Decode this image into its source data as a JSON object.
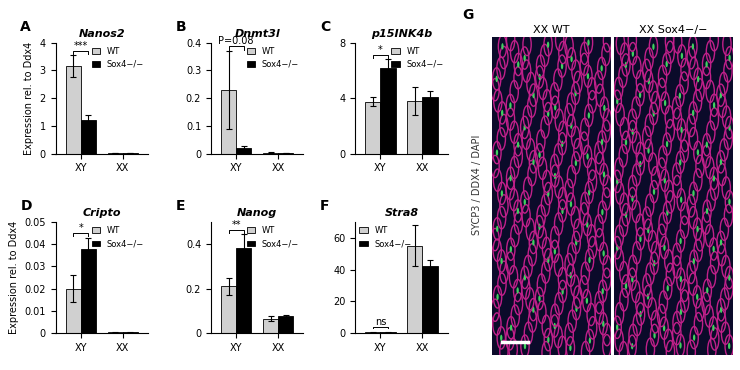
{
  "chart_data": [
    {
      "type": "bar",
      "panel": "A",
      "title": "Nanos2",
      "y_label": "Expression rel. to Ddx4",
      "categories": [
        "XY",
        "XX"
      ],
      "series": [
        {
          "name": "WT",
          "color": "#d0d0d0",
          "values": [
            3.15,
            0.02
          ],
          "errors": [
            0.4,
            0.01
          ]
        },
        {
          "name": "Sox4−/−",
          "color": "#000000",
          "values": [
            1.2,
            0.02
          ],
          "errors": [
            0.2,
            0.01
          ]
        }
      ],
      "ylim": [
        0,
        4
      ],
      "yticks": [
        0,
        1,
        2,
        3,
        4
      ],
      "legend": "upper right",
      "annotation": "***"
    },
    {
      "type": "bar",
      "panel": "B",
      "title": "Dnmt3l",
      "categories": [
        "XY",
        "XX"
      ],
      "series": [
        {
          "name": "WT",
          "color": "#d0d0d0",
          "values": [
            0.23,
            0.003
          ],
          "errors": [
            0.14,
            0.001
          ]
        },
        {
          "name": "Sox4−/−",
          "color": "#000000",
          "values": [
            0.02,
            0.002
          ],
          "errors": [
            0.008,
            0.001
          ]
        }
      ],
      "ylim": [
        0,
        0.4
      ],
      "yticks": [
        0,
        0.1,
        0.2,
        0.3,
        0.4
      ],
      "legend": "upper right",
      "annotation": "P=0.08"
    },
    {
      "type": "bar",
      "panel": "C",
      "title": "p15INK4b",
      "categories": [
        "XY",
        "XX"
      ],
      "series": [
        {
          "name": "WT",
          "color": "#d0d0d0",
          "values": [
            3.75,
            3.8
          ],
          "errors": [
            0.3,
            1.0
          ]
        },
        {
          "name": "Sox4−/−",
          "color": "#000000",
          "values": [
            6.2,
            4.1
          ],
          "errors": [
            0.6,
            0.4
          ]
        }
      ],
      "ylim": [
        0,
        8
      ],
      "yticks": [
        0,
        4,
        8
      ],
      "legend": "upper right",
      "annotation": "*"
    },
    {
      "type": "bar",
      "panel": "D",
      "title": "Cripto",
      "y_label": "Expression rel. to Ddx4",
      "categories": [
        "XY",
        "XX"
      ],
      "series": [
        {
          "name": "WT",
          "color": "#d0d0d0",
          "values": [
            0.02,
            0.0003
          ],
          "errors": [
            0.006,
            0.0001
          ]
        },
        {
          "name": "Sox4−/−",
          "color": "#000000",
          "values": [
            0.038,
            0.0003
          ],
          "errors": [
            0.005,
            0.0001
          ]
        }
      ],
      "ylim": [
        0,
        0.05
      ],
      "yticks": [
        0,
        0.01,
        0.02,
        0.03,
        0.04,
        0.05
      ],
      "legend": "upper right",
      "annotation": "*"
    },
    {
      "type": "bar",
      "panel": "E",
      "title": "Nanog",
      "categories": [
        "XY",
        "XX"
      ],
      "series": [
        {
          "name": "WT",
          "color": "#d0d0d0",
          "values": [
            0.21,
            0.065
          ],
          "errors": [
            0.04,
            0.01
          ]
        },
        {
          "name": "Sox4−/−",
          "color": "#000000",
          "values": [
            0.385,
            0.075
          ],
          "errors": [
            0.06,
            0.008
          ]
        }
      ],
      "ylim": [
        0,
        0.5
      ],
      "yticks": [
        0,
        0.2,
        0.4
      ],
      "legend": "upper right",
      "annotation": "**"
    },
    {
      "type": "bar",
      "panel": "F",
      "title": "Stra8",
      "categories": [
        "XY",
        "XX"
      ],
      "series": [
        {
          "name": "WT",
          "color": "#d0d0d0",
          "values": [
            0.5,
            55
          ],
          "errors": [
            0.2,
            13
          ]
        },
        {
          "name": "Sox4−/−",
          "color": "#000000",
          "values": [
            0.5,
            42
          ],
          "errors": [
            0.2,
            4
          ]
        }
      ],
      "ylim": [
        0,
        70
      ],
      "yticks": [
        0,
        20,
        40,
        60
      ],
      "legend": "upper left",
      "annotation": "ns"
    }
  ],
  "image_panel": {
    "panel": "G",
    "labels": [
      "XX WT",
      "XX Sox4−/−"
    ],
    "stain": "SYCP3 / DDX4 / DAPI"
  }
}
